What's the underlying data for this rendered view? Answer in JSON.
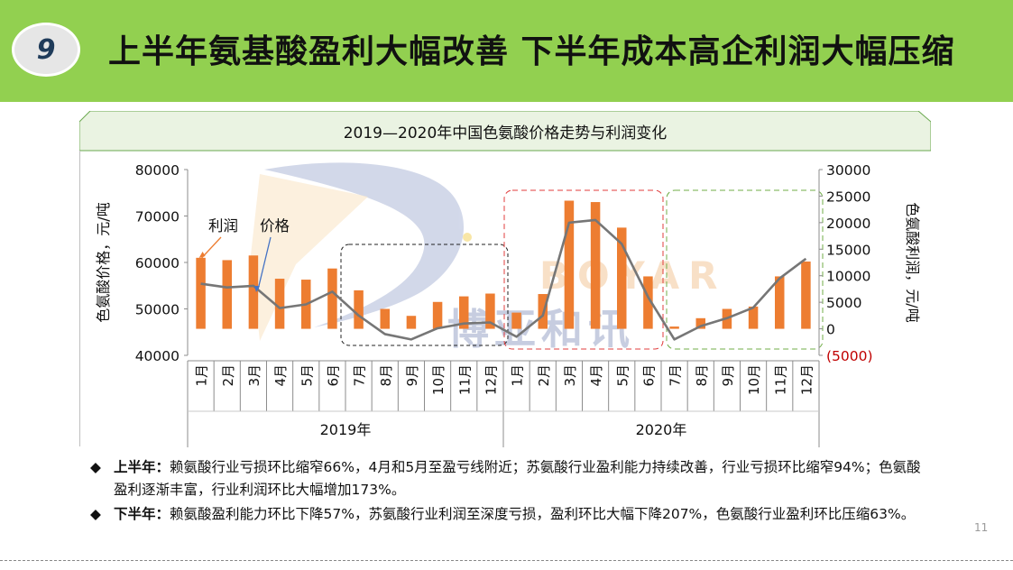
{
  "header": {
    "badge": "9",
    "title": "上半年氨基酸盈利大幅改善 下半年成本高企利润大幅压缩"
  },
  "watermark": {
    "letters": "BOYAR",
    "chars": "博亚和讯"
  },
  "chart_data": {
    "type": "bar+line",
    "title": "2019—2020年中国色氨酸价格走势与利润变化",
    "categories": [
      "1月",
      "2月",
      "3月",
      "4月",
      "5月",
      "6月",
      "7月",
      "8月",
      "9月",
      "10月",
      "11月",
      "12月",
      "1月",
      "2月",
      "3月",
      "4月",
      "5月",
      "6月",
      "7月",
      "8月",
      "9月",
      "10月",
      "11月",
      "12月"
    ],
    "groups": [
      {
        "label": "2019年",
        "start": 0,
        "end": 11
      },
      {
        "label": "2020年",
        "start": 12,
        "end": 23
      }
    ],
    "series": [
      {
        "name": "价格",
        "kind": "bar",
        "axis": "left",
        "color": "#ed7d31",
        "values": [
          61000,
          60500,
          61500,
          56500,
          56300,
          58700,
          54000,
          50000,
          48500,
          51500,
          52700,
          53300,
          49200,
          53200,
          73300,
          73000,
          67500,
          57000,
          46200,
          48000,
          50000,
          50500,
          57000,
          60200
        ]
      },
      {
        "name": "利润",
        "kind": "line",
        "axis": "right",
        "color": "#767676",
        "values": [
          8500,
          7800,
          8100,
          3900,
          4600,
          7000,
          2500,
          -1000,
          -2000,
          100,
          1000,
          1200,
          -1500,
          2500,
          20000,
          20500,
          16000,
          6000,
          -2000,
          500,
          2000,
          4000,
          9500,
          13200
        ]
      }
    ],
    "yLeft": {
      "label": "色氨酸价格，元/吨",
      "min": 40000,
      "max": 80000,
      "ticks": [
        "80000",
        "70000",
        "60000",
        "50000",
        "40000"
      ]
    },
    "yRight": {
      "label": "色氨酸利润，元/吨",
      "min": -5000,
      "max": 30000,
      "ticks": [
        "30000",
        "25000",
        "20000",
        "15000",
        "10000",
        "5000",
        "0",
        "(5000)"
      ]
    },
    "annotations": {
      "profit_label": "利润",
      "price_label": "价格"
    }
  },
  "bullets": [
    {
      "head": "上半年：",
      "body": "赖氨酸行业亏损环比缩窄66%，4月和5月至盈亏线附近；苏氨酸行业盈利能力持续改善，行业亏损环比缩窄94%；色氨酸盈利逐渐丰富，行业利润环比大幅增加173%。"
    },
    {
      "head": "下半年：",
      "body": "赖氨酸盈利能力环比下降57%，苏氨酸行业利润至深度亏损，盈利环比大幅下降207%，色氨酸行业盈利环比压缩63%。"
    }
  ],
  "page_number": "11",
  "colors": {
    "header_bg": "#92d050",
    "bar": "#ed7d31",
    "line": "#767676",
    "red_box": "#e03c3c",
    "green_box": "#70ad47",
    "neg_tick": "#c00000"
  }
}
